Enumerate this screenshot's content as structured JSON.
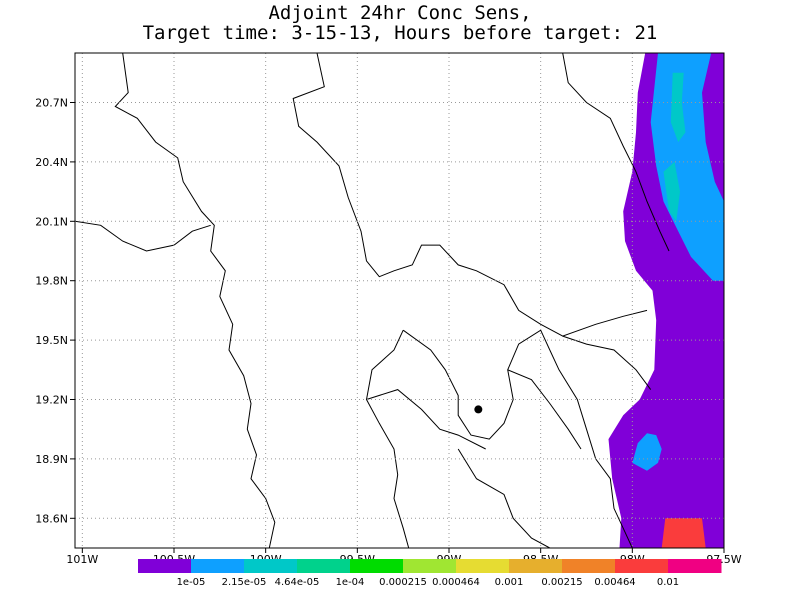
{
  "chart_data": {
    "type": "heatmap",
    "title_line1": "Adjoint 24hr Conc Sens,",
    "title_line2": "Target time: 3-15-13, Hours before target: 21",
    "x_ticks": [
      {
        "value": -101.0,
        "label": "101W"
      },
      {
        "value": -100.5,
        "label": "100.5W"
      },
      {
        "value": -100.0,
        "label": "100W"
      },
      {
        "value": -99.5,
        "label": "99.5W"
      },
      {
        "value": -99.0,
        "label": "99W"
      },
      {
        "value": -98.5,
        "label": "98.5W"
      },
      {
        "value": -98.0,
        "label": "98W"
      },
      {
        "value": -97.5,
        "label": "97.5W"
      }
    ],
    "y_ticks": [
      {
        "value": 18.6,
        "label": "18.6N"
      },
      {
        "value": 18.9,
        "label": "18.9N"
      },
      {
        "value": 19.2,
        "label": "19.2N"
      },
      {
        "value": 19.5,
        "label": "19.5N"
      },
      {
        "value": 19.8,
        "label": "19.8N"
      },
      {
        "value": 20.1,
        "label": "20.1N"
      },
      {
        "value": 20.4,
        "label": "20.4N"
      },
      {
        "value": 20.7,
        "label": "20.7N"
      }
    ],
    "xlim": [
      -101.04,
      -97.5
    ],
    "ylim": [
      18.45,
      20.95
    ],
    "grid": true,
    "target_point": {
      "lon": -98.84,
      "lat": 19.15
    },
    "colorbar": {
      "colors": [
        "#8000d8",
        "#0ea0ff",
        "#00c8c8",
        "#00d28c",
        "#00dc00",
        "#a0e632",
        "#e6dc32",
        "#e6af2d",
        "#f08228",
        "#fa3c3c",
        "#f00082"
      ],
      "labels": [
        "1e-05",
        "2.15e-05",
        "4.64e-05",
        "1e-04",
        "0.000215",
        "0.000464",
        "0.001",
        "0.00215",
        "0.00464",
        "0.01"
      ]
    },
    "regions": [
      {
        "level": 0,
        "coords": [
          [
            -97.93,
            20.95
          ],
          [
            -97.5,
            20.95
          ],
          [
            -97.5,
            18.45
          ],
          [
            -98.07,
            18.45
          ],
          [
            -98.06,
            18.6
          ],
          [
            -98.11,
            18.8
          ],
          [
            -98.13,
            19.0
          ],
          [
            -98.05,
            19.12
          ],
          [
            -97.96,
            19.2
          ],
          [
            -97.88,
            19.35
          ],
          [
            -97.87,
            19.6
          ],
          [
            -97.89,
            19.75
          ],
          [
            -97.98,
            19.85
          ],
          [
            -98.04,
            20.0
          ],
          [
            -98.05,
            20.15
          ],
          [
            -98.0,
            20.35
          ],
          [
            -97.98,
            20.55
          ],
          [
            -97.97,
            20.75
          ]
        ]
      },
      {
        "level": 1,
        "coords": [
          [
            -97.86,
            20.95
          ],
          [
            -97.57,
            20.95
          ],
          [
            -97.62,
            20.75
          ],
          [
            -97.6,
            20.5
          ],
          [
            -97.55,
            20.3
          ],
          [
            -97.5,
            20.2
          ],
          [
            -97.5,
            19.8
          ],
          [
            -97.56,
            19.8
          ],
          [
            -97.68,
            19.92
          ],
          [
            -97.75,
            20.05
          ],
          [
            -97.83,
            20.2
          ],
          [
            -97.87,
            20.38
          ],
          [
            -97.9,
            20.6
          ]
        ]
      },
      {
        "level": 2,
        "coords": [
          [
            -97.78,
            20.85
          ],
          [
            -97.72,
            20.85
          ],
          [
            -97.73,
            20.7
          ],
          [
            -97.71,
            20.55
          ],
          [
            -97.75,
            20.5
          ],
          [
            -97.79,
            20.6
          ]
        ]
      },
      {
        "level": 2,
        "coords": [
          [
            -97.83,
            20.35
          ],
          [
            -97.77,
            20.4
          ],
          [
            -97.74,
            20.25
          ],
          [
            -97.76,
            20.1
          ],
          [
            -97.8,
            20.15
          ]
        ]
      },
      {
        "level": 1,
        "coords": [
          [
            -98.0,
            18.88
          ],
          [
            -97.97,
            18.98
          ],
          [
            -97.92,
            19.03
          ],
          [
            -97.87,
            19.02
          ],
          [
            -97.84,
            18.95
          ],
          [
            -97.86,
            18.88
          ],
          [
            -97.92,
            18.84
          ]
        ]
      },
      {
        "level": 9,
        "coords": [
          [
            -97.82,
            18.6
          ],
          [
            -97.62,
            18.6
          ],
          [
            -97.6,
            18.45
          ],
          [
            -97.84,
            18.45
          ]
        ]
      }
    ],
    "borders": [
      [
        [
          -100.78,
          20.95
        ],
        [
          -100.75,
          20.75
        ],
        [
          -100.82,
          20.68
        ],
        [
          -100.7,
          20.62
        ],
        [
          -100.6,
          20.5
        ],
        [
          -100.48,
          20.42
        ],
        [
          -100.45,
          20.3
        ],
        [
          -100.35,
          20.15
        ],
        [
          -100.28,
          20.08
        ],
        [
          -100.3,
          19.95
        ],
        [
          -100.22,
          19.85
        ],
        [
          -100.25,
          19.72
        ],
        [
          -100.18,
          19.58
        ],
        [
          -100.2,
          19.45
        ],
        [
          -100.12,
          19.32
        ],
        [
          -100.08,
          19.18
        ],
        [
          -100.1,
          19.05
        ],
        [
          -100.05,
          18.92
        ],
        [
          -100.08,
          18.8
        ],
        [
          -100.0,
          18.7
        ],
        [
          -99.95,
          18.58
        ],
        [
          -99.98,
          18.45
        ]
      ],
      [
        [
          -101.04,
          20.1
        ],
        [
          -100.9,
          20.08
        ],
        [
          -100.78,
          20.0
        ],
        [
          -100.65,
          19.95
        ],
        [
          -100.5,
          19.98
        ],
        [
          -100.4,
          20.05
        ],
        [
          -100.3,
          20.08
        ]
      ],
      [
        [
          -99.72,
          20.95
        ],
        [
          -99.68,
          20.78
        ],
        [
          -99.85,
          20.72
        ],
        [
          -99.82,
          20.58
        ],
        [
          -99.72,
          20.5
        ],
        [
          -99.6,
          20.38
        ],
        [
          -99.55,
          20.22
        ],
        [
          -99.48,
          20.05
        ],
        [
          -99.45,
          19.9
        ],
        [
          -99.38,
          19.82
        ],
        [
          -99.3,
          19.85
        ],
        [
          -99.2,
          19.88
        ],
        [
          -99.15,
          19.98
        ],
        [
          -99.05,
          19.98
        ],
        [
          -98.95,
          19.88
        ],
        [
          -98.85,
          19.85
        ],
        [
          -98.7,
          19.78
        ],
        [
          -98.62,
          19.65
        ],
        [
          -98.5,
          19.58
        ],
        [
          -98.38,
          19.52
        ],
        [
          -98.2,
          19.58
        ],
        [
          -98.05,
          19.62
        ],
        [
          -97.92,
          19.65
        ]
      ],
      [
        [
          -98.38,
          20.95
        ],
        [
          -98.35,
          20.8
        ],
        [
          -98.25,
          20.7
        ],
        [
          -98.12,
          20.62
        ],
        [
          -98.05,
          20.48
        ],
        [
          -97.98,
          20.35
        ],
        [
          -97.92,
          20.2
        ],
        [
          -97.85,
          20.05
        ],
        [
          -97.8,
          19.95
        ]
      ],
      [
        [
          -99.25,
          19.55
        ],
        [
          -99.3,
          19.45
        ],
        [
          -99.42,
          19.35
        ],
        [
          -99.45,
          19.2
        ],
        [
          -99.38,
          19.08
        ],
        [
          -99.3,
          18.95
        ],
        [
          -99.28,
          18.82
        ],
        [
          -99.3,
          18.7
        ],
        [
          -99.25,
          18.55
        ],
        [
          -99.22,
          18.45
        ]
      ],
      [
        [
          -99.25,
          19.55
        ],
        [
          -99.1,
          19.45
        ],
        [
          -99.02,
          19.35
        ],
        [
          -98.95,
          19.22
        ],
        [
          -98.95,
          19.12
        ],
        [
          -98.88,
          19.02
        ],
        [
          -98.78,
          19.0
        ],
        [
          -98.7,
          19.08
        ],
        [
          -98.65,
          19.2
        ],
        [
          -98.68,
          19.35
        ],
        [
          -98.62,
          19.48
        ],
        [
          -98.5,
          19.55
        ],
        [
          -98.45,
          19.45
        ]
      ],
      [
        [
          -99.45,
          19.2
        ],
        [
          -99.28,
          19.25
        ],
        [
          -99.15,
          19.15
        ],
        [
          -99.05,
          19.05
        ],
        [
          -98.95,
          19.02
        ],
        [
          -98.8,
          18.95
        ]
      ],
      [
        [
          -98.45,
          19.45
        ],
        [
          -98.4,
          19.35
        ],
        [
          -98.3,
          19.2
        ],
        [
          -98.25,
          19.05
        ],
        [
          -98.2,
          18.9
        ],
        [
          -98.12,
          18.8
        ],
        [
          -98.1,
          18.65
        ],
        [
          -98.05,
          18.55
        ],
        [
          -98.0,
          18.45
        ]
      ],
      [
        [
          -98.38,
          19.52
        ],
        [
          -98.25,
          19.48
        ],
        [
          -98.1,
          19.45
        ],
        [
          -97.98,
          19.35
        ],
        [
          -97.9,
          19.25
        ]
      ],
      [
        [
          -98.68,
          19.35
        ],
        [
          -98.55,
          19.3
        ],
        [
          -98.45,
          19.18
        ],
        [
          -98.35,
          19.05
        ],
        [
          -98.28,
          18.95
        ]
      ],
      [
        [
          -98.95,
          18.95
        ],
        [
          -98.85,
          18.8
        ],
        [
          -98.7,
          18.72
        ],
        [
          -98.65,
          18.6
        ],
        [
          -98.55,
          18.5
        ],
        [
          -98.45,
          18.45
        ]
      ]
    ],
    "point_label": ""
  }
}
